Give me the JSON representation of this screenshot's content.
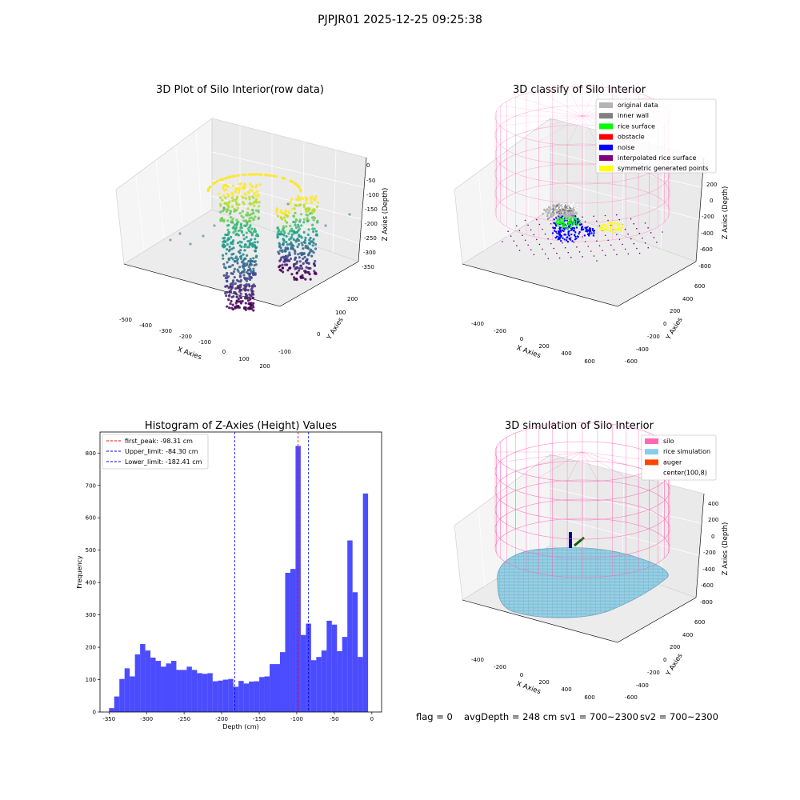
{
  "figure": {
    "suptitle": "PJPJR01 2025-12-25 09:25:38",
    "status": {
      "flag": "flag = 0",
      "avg_depth": "avgDepth = 248 cm",
      "sv1": "sv1 = 700~2300",
      "sv2": "sv2 = 700~2300"
    }
  },
  "panels": {
    "raw": {
      "title": "3D Plot of Silo Interior(row data)",
      "x_label": "X Axies",
      "y_label": "Y Axies",
      "z_label": "Z Axies (Depth)",
      "x_ticks": [
        "-500",
        "-400",
        "-300",
        "-200",
        "-100",
        "0",
        "100",
        "200"
      ],
      "y_ticks": [
        "-100",
        "0",
        "100",
        "200"
      ],
      "z_ticks": [
        "0",
        "-50",
        "-100",
        "-150",
        "-200",
        "-250",
        "-300",
        "-350"
      ]
    },
    "classify": {
      "title": "3D classify of Silo Interior",
      "x_label": "X Axies",
      "y_label": "Y Axies",
      "z_label": "Z Axies (Depth)",
      "x_ticks": [
        "-400",
        "-200",
        "0",
        "200",
        "400",
        "600"
      ],
      "y_ticks": [
        "-600",
        "-400",
        "-200",
        "0",
        "200",
        "400",
        "600"
      ],
      "z_ticks": [
        "200",
        "0",
        "-200",
        "-400",
        "-600",
        "-800"
      ],
      "legend": [
        {
          "label": "original data",
          "color": "#b4b4b4"
        },
        {
          "label": "inner wall",
          "color": "#808080"
        },
        {
          "label": "rice surface",
          "color": "#00ff00"
        },
        {
          "label": "obstacle",
          "color": "#ff0000"
        },
        {
          "label": "noise",
          "color": "#0000ff"
        },
        {
          "label": "interpolated rice surface",
          "color": "#800080"
        },
        {
          "label": "symmetric generated points",
          "color": "#ffff00"
        }
      ]
    },
    "simulation": {
      "title": "3D simulation of Silo Interior",
      "x_label": "X Axies",
      "y_label": "Y Axies",
      "z_label": "Z Axies (Depth)",
      "x_ticks": [
        "-400",
        "-200",
        "0",
        "200",
        "400",
        "600"
      ],
      "y_ticks": [
        "-600",
        "-400",
        "-200",
        "0",
        "200",
        "400",
        "600"
      ],
      "z_ticks": [
        "400",
        "200",
        "0",
        "-200",
        "-400",
        "-600",
        "-800"
      ],
      "legend": [
        {
          "label": "silo",
          "color": "#ff69b4"
        },
        {
          "label": "rice simulation",
          "color": "#87ceeb"
        },
        {
          "label": "auger",
          "color": "#ff4500"
        },
        {
          "label": "center(100,8)",
          "color": "#ffffff"
        }
      ]
    }
  },
  "chart_data": [
    {
      "type": "scatter",
      "title": "3D Plot of Silo Interior(row data)",
      "xlabel": "X Axies",
      "ylabel": "Y Axies",
      "zlabel": "Z Axies (Depth)",
      "xlim": [
        -520,
        220
      ],
      "ylim": [
        -150,
        280
      ],
      "zlim": [
        -380,
        10
      ],
      "colormap": "viridis",
      "grid": true
    },
    {
      "type": "scatter",
      "title": "3D classify of Silo Interior",
      "xlabel": "X Axies",
      "ylabel": "Y Axies",
      "zlabel": "Z Axies (Depth)",
      "xlim": [
        -500,
        750
      ],
      "ylim": [
        -700,
        700
      ],
      "zlim": [
        -900,
        300
      ],
      "legend_position": "upper right",
      "grid": true
    },
    {
      "type": "bar",
      "title": "Histogram of Z-Axies (Height) Values",
      "xlabel": "Depth (cm)",
      "ylabel": "Frequency",
      "xlim": [
        -362,
        13
      ],
      "ylim": [
        0,
        865
      ],
      "x_ticks": [
        -350,
        -300,
        -250,
        -200,
        -150,
        -100,
        -50,
        0
      ],
      "y_ticks": [
        0,
        100,
        200,
        300,
        400,
        500,
        600,
        700,
        800
      ],
      "bar_color": "#0000ff",
      "bin_start": -350,
      "bin_width": 6.9,
      "values": [
        12,
        48,
        102,
        135,
        110,
        178,
        210,
        190,
        168,
        158,
        140,
        150,
        158,
        130,
        130,
        140,
        130,
        120,
        118,
        120,
        95,
        97,
        100,
        102,
        78,
        96,
        88,
        94,
        95,
        108,
        110,
        148,
        148,
        185,
        430,
        442,
        822,
        238,
        273,
        160,
        170,
        190,
        282,
        270,
        188,
        232,
        530,
        370,
        170,
        675
      ],
      "lines": [
        {
          "label": "first_peak: -98.31 cm",
          "value": -98.31,
          "color": "#ff0000"
        },
        {
          "label": "Upper_limit: -84.30 cm",
          "value": -84.3,
          "color": "#0000ff"
        },
        {
          "label": "Lower_limit: -182.41 cm",
          "value": -182.41,
          "color": "#0000ff"
        }
      ],
      "legend_position": "upper left",
      "grid": false
    },
    {
      "type": "area",
      "title": "3D simulation of Silo Interior",
      "xlabel": "X Axies",
      "ylabel": "Y Axies",
      "zlabel": "Z Axies (Depth)",
      "xlim": [
        -500,
        750
      ],
      "ylim": [
        -700,
        700
      ],
      "zlim": [
        -900,
        450
      ],
      "legend_position": "upper right",
      "grid": true
    }
  ]
}
